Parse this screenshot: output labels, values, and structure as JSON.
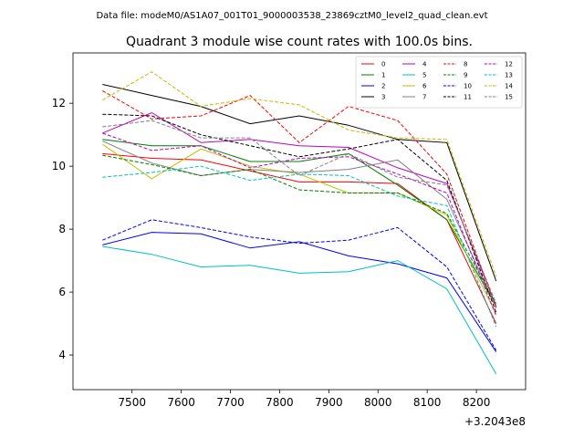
{
  "suptitle": "Data file: modeM0/AS1A07_001T01_9000003538_23869cztM0_level2_quad_clean.evt",
  "chart_data": {
    "type": "line",
    "title": "Quadrant 3 module wise count rates with 100.0s bins.",
    "xlabel": "",
    "ylabel": "",
    "x_offset_label": "+3.2043e8",
    "x": [
      7440,
      7540,
      7640,
      7740,
      7840,
      7940,
      8040,
      8140,
      8240
    ],
    "xlim": [
      7380,
      8300
    ],
    "ylim": [
      2.9,
      13.6
    ],
    "x_ticks": [
      7500,
      7600,
      7700,
      7800,
      7900,
      8000,
      8100,
      8200
    ],
    "y_ticks": [
      4,
      6,
      8,
      10,
      12
    ],
    "legend_location": "upper right",
    "series": [
      {
        "name": "0",
        "color": "#ff0000",
        "style": "solid",
        "values": [
          10.4,
          10.25,
          10.2,
          9.85,
          9.5,
          9.5,
          9.45,
          8.3,
          5.0
        ]
      },
      {
        "name": "1",
        "color": "#008000",
        "style": "solid",
        "values": [
          10.85,
          10.65,
          10.65,
          10.15,
          10.15,
          10.4,
          9.4,
          8.3,
          5.55
        ]
      },
      {
        "name": "2",
        "color": "#0000ff",
        "style": "solid",
        "values": [
          7.5,
          7.9,
          7.85,
          7.4,
          7.6,
          7.15,
          6.9,
          6.45,
          4.1
        ]
      },
      {
        "name": "3",
        "color": "#000000",
        "style": "solid",
        "values": [
          12.6,
          12.25,
          11.9,
          11.35,
          11.6,
          11.3,
          10.85,
          10.75,
          6.35
        ]
      },
      {
        "name": "4",
        "color": "#bf00bf",
        "style": "solid",
        "values": [
          11.05,
          11.7,
          10.75,
          10.85,
          10.65,
          10.6,
          9.95,
          9.45,
          5.55
        ]
      },
      {
        "name": "5",
        "color": "#00bfbf",
        "style": "solid",
        "values": [
          7.45,
          7.2,
          6.8,
          6.85,
          6.6,
          6.65,
          7.0,
          6.1,
          3.4
        ]
      },
      {
        "name": "6",
        "color": "#bfbf00",
        "style": "solid",
        "values": [
          10.7,
          9.6,
          10.55,
          10.0,
          9.75,
          9.15,
          9.15,
          8.45,
          5.3
        ]
      },
      {
        "name": "7",
        "color": "#808080",
        "style": "solid",
        "values": [
          10.8,
          10.1,
          9.7,
          9.9,
          9.8,
          9.9,
          10.2,
          8.95,
          5.5
        ]
      },
      {
        "name": "8",
        "color": "#ff0000",
        "style": "dashed",
        "values": [
          12.4,
          11.5,
          11.6,
          12.25,
          10.75,
          11.9,
          11.45,
          9.75,
          5.5
        ]
      },
      {
        "name": "9",
        "color": "#008000",
        "style": "dashed",
        "values": [
          10.35,
          10.05,
          9.7,
          9.9,
          9.25,
          9.15,
          9.15,
          8.5,
          5.6
        ]
      },
      {
        "name": "10",
        "color": "#0000ff",
        "style": "dashed",
        "values": [
          7.65,
          8.3,
          8.05,
          7.75,
          7.55,
          7.65,
          8.05,
          6.8,
          4.15
        ]
      },
      {
        "name": "11",
        "color": "#000000",
        "style": "dashed",
        "values": [
          11.65,
          11.6,
          11.0,
          10.65,
          10.3,
          10.55,
          10.85,
          9.55,
          5.35
        ]
      },
      {
        "name": "12",
        "color": "#bf00bf",
        "style": "dashed",
        "values": [
          11.05,
          10.5,
          10.65,
          9.95,
          10.25,
          10.3,
          9.75,
          9.15,
          5.25
        ]
      },
      {
        "name": "13",
        "color": "#00bfbf",
        "style": "dashed",
        "values": [
          9.65,
          9.8,
          10.0,
          9.55,
          9.75,
          9.7,
          9.05,
          8.75,
          4.9
        ]
      },
      {
        "name": "14",
        "color": "#bfbf00",
        "style": "dashed",
        "values": [
          12.1,
          13.0,
          11.9,
          12.15,
          11.95,
          11.15,
          10.9,
          10.85,
          6.5
        ]
      },
      {
        "name": "15",
        "color": "#808080",
        "style": "dashed",
        "values": [
          11.25,
          11.45,
          10.9,
          10.9,
          9.7,
          10.4,
          9.65,
          9.4,
          5.65
        ]
      }
    ]
  }
}
